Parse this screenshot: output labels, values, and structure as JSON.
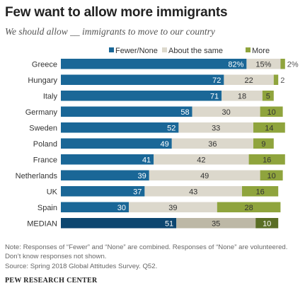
{
  "title": "Few want to allow more immigrants",
  "subtitle": "We should allow __ immigrants to move to our country",
  "note": "Note: Responses of “Fewer” and “None” are combined. Responses of “None” are volunteered. Don’t know responses not shown.",
  "source": "Source: Spring 2018 Global Attitudes Survey. Q52.",
  "brand": "PEW RESEARCH CENTER",
  "colors": {
    "fewer": "#1a6797",
    "same": "#dcd8cc",
    "more": "#8fa43d",
    "median_fewer": "#0c4670",
    "median_same": "#bdb8a6",
    "median_more": "#5a6e25"
  },
  "chart_data": {
    "type": "bar",
    "orientation": "horizontal",
    "stacked": true,
    "unit": "%",
    "xlim": [
      0,
      100
    ],
    "legend": "top",
    "categories": [
      "Greece",
      "Hungary",
      "Italy",
      "Germany",
      "Sweden",
      "Poland",
      "France",
      "Netherlands",
      "UK",
      "Spain",
      "MEDIAN"
    ],
    "series": [
      {
        "name": "Fewer/None",
        "values": [
          82,
          72,
          71,
          58,
          52,
          49,
          41,
          39,
          37,
          30,
          51
        ]
      },
      {
        "name": "About the same",
        "values": [
          15,
          22,
          18,
          30,
          33,
          36,
          42,
          49,
          43,
          39,
          35
        ]
      },
      {
        "name": "More",
        "values": [
          2,
          2,
          5,
          10,
          14,
          9,
          16,
          10,
          16,
          28,
          10
        ]
      }
    ],
    "value_labels": [
      [
        "82%",
        "15%",
        "2%"
      ],
      [
        "72",
        "22",
        "2"
      ],
      [
        "71",
        "18",
        "5"
      ],
      [
        "58",
        "30",
        "10"
      ],
      [
        "52",
        "33",
        "14"
      ],
      [
        "49",
        "36",
        "9"
      ],
      [
        "41",
        "42",
        "16"
      ],
      [
        "39",
        "49",
        "10"
      ],
      [
        "37",
        "43",
        "16"
      ],
      [
        "30",
        "39",
        "28"
      ],
      [
        "51",
        "35",
        "10"
      ]
    ]
  }
}
